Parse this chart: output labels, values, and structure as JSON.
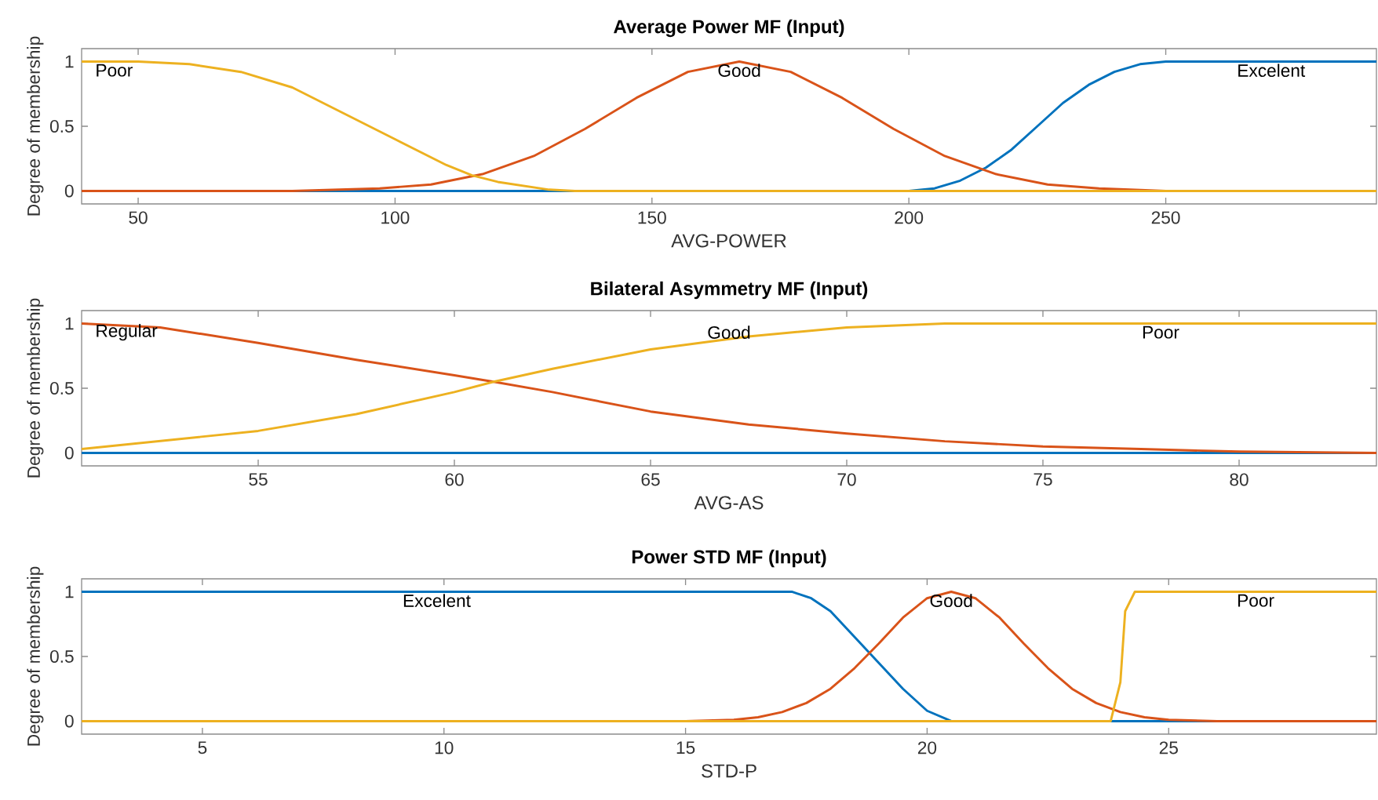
{
  "chart_data": [
    {
      "type": "line",
      "title": "Average Power MF (Input)",
      "xlabel": "AVG-POWER",
      "ylabel": "Degree of membership",
      "xlim": [
        39,
        291
      ],
      "xticks": [
        50,
        100,
        150,
        200,
        250
      ],
      "ylim": [
        -0.1,
        1.1
      ],
      "yticks": [
        0,
        0.5,
        1
      ],
      "series": [
        {
          "name": "Excelent",
          "color": "#0072bd",
          "x": [
            39,
            200,
            205,
            210,
            215,
            220,
            225,
            230,
            235,
            240,
            245,
            250,
            291
          ],
          "values": [
            0,
            0,
            0.02,
            0.08,
            0.18,
            0.32,
            0.5,
            0.68,
            0.82,
            0.92,
            0.98,
            1,
            1
          ]
        },
        {
          "name": "Good",
          "color": "#d95319",
          "x": [
            39,
            80,
            97,
            107,
            117,
            127,
            137,
            147,
            157,
            167,
            177,
            187,
            197,
            207,
            217,
            227,
            237,
            250,
            291
          ],
          "values": [
            0,
            0,
            0.02,
            0.05,
            0.13,
            0.27,
            0.48,
            0.72,
            0.92,
            1,
            0.92,
            0.72,
            0.48,
            0.27,
            0.13,
            0.05,
            0.02,
            0,
            0
          ]
        },
        {
          "name": "Poor",
          "color": "#edb120",
          "x": [
            39,
            50,
            60,
            70,
            80,
            90,
            100,
            110,
            115,
            120,
            130,
            135,
            291
          ],
          "values": [
            1,
            1,
            0.98,
            0.92,
            0.8,
            0.6,
            0.4,
            0.2,
            0.12,
            0.07,
            0.01,
            0,
            0
          ]
        }
      ]
    },
    {
      "type": "line",
      "title": "Bilateral Asymmetry MF (Input)",
      "xlabel": "AVG-AS",
      "ylabel": "Degree of membership",
      "xlim": [
        50.5,
        83.5
      ],
      "xticks": [
        55,
        60,
        65,
        70,
        75,
        80
      ],
      "ylim": [
        -0.1,
        1.1
      ],
      "yticks": [
        0,
        0.5,
        1
      ],
      "series": [
        {
          "color": "#0072bd",
          "x": [
            50.5,
            83.5
          ],
          "values": [
            0,
            0
          ]
        },
        {
          "name": "Regular",
          "color": "#d95319",
          "x": [
            50.5,
            52.5,
            55,
            57.5,
            60,
            61,
            62.5,
            65,
            67.5,
            70,
            72.5,
            75,
            77.5,
            80,
            83.5
          ],
          "values": [
            1,
            0.97,
            0.85,
            0.72,
            0.6,
            0.55,
            0.47,
            0.32,
            0.22,
            0.15,
            0.09,
            0.05,
            0.03,
            0.01,
            0
          ]
        },
        {
          "name": "Poor",
          "color": "#edb120",
          "x": [
            50.5,
            55,
            57.5,
            60,
            61,
            62.5,
            65,
            67.5,
            70,
            72.5,
            83.5
          ],
          "values": [
            0.03,
            0.17,
            0.3,
            0.47,
            0.55,
            0.65,
            0.8,
            0.9,
            0.97,
            1,
            1
          ]
        }
      ],
      "annotations": [
        "Good"
      ]
    },
    {
      "type": "line",
      "title": "Power STD MF (Input)",
      "xlabel": "STD-P",
      "ylabel": "Degree of membership",
      "xlim": [
        2.5,
        29.3
      ],
      "xticks": [
        5,
        10,
        15,
        20,
        25
      ],
      "ylim": [
        -0.1,
        1.1
      ],
      "yticks": [
        0,
        0.5,
        1
      ],
      "series": [
        {
          "name": "Excelent",
          "color": "#0072bd",
          "x": [
            2.5,
            17.2,
            17.6,
            18,
            18.5,
            19,
            19.5,
            20,
            20.5,
            29.3
          ],
          "values": [
            1,
            1,
            0.95,
            0.85,
            0.65,
            0.45,
            0.25,
            0.08,
            0,
            0
          ]
        },
        {
          "name": "Good",
          "color": "#d95319",
          "x": [
            2.5,
            15,
            16,
            16.5,
            17,
            17.5,
            18,
            18.5,
            19,
            19.5,
            20,
            20.5,
            21,
            21.5,
            22,
            22.5,
            23,
            23.5,
            24,
            24.5,
            25,
            26,
            29.3
          ],
          "values": [
            0,
            0,
            0.01,
            0.03,
            0.07,
            0.14,
            0.25,
            0.41,
            0.6,
            0.8,
            0.95,
            1,
            0.95,
            0.8,
            0.6,
            0.41,
            0.25,
            0.14,
            0.07,
            0.03,
            0.01,
            0,
            0
          ]
        },
        {
          "name": "Poor",
          "color": "#edb120",
          "x": [
            2.5,
            23.8,
            24,
            24.1,
            24.3,
            29.3
          ],
          "values": [
            0,
            0,
            0.3,
            0.85,
            1,
            1
          ]
        }
      ]
    }
  ]
}
